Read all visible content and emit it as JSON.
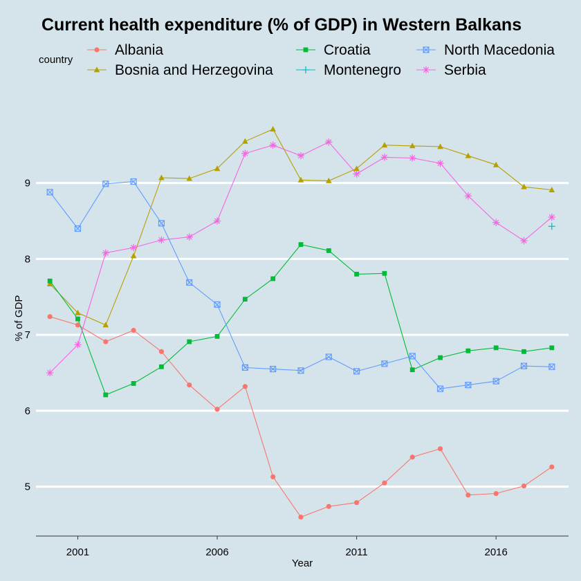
{
  "chart_data": {
    "type": "line",
    "title": "Current health expenditure (% of GDP) in Western Balkans",
    "xlabel": "Year",
    "ylabel": "% of GDP",
    "legend_title": "country",
    "legend_position": "top",
    "grid": "horizontal major lines",
    "xlim": [
      1999.5,
      2018.6
    ],
    "ylim": [
      4.35,
      10.3
    ],
    "x_ticks": [
      2001,
      2006,
      2011,
      2016
    ],
    "y_ticks": [
      5,
      6,
      7,
      8,
      9
    ],
    "x": [
      2000,
      2001,
      2002,
      2003,
      2004,
      2005,
      2006,
      2007,
      2008,
      2009,
      2010,
      2011,
      2012,
      2013,
      2014,
      2015,
      2016,
      2017,
      2018
    ],
    "series": [
      {
        "name": "Albania",
        "color": "#f8766d",
        "marker": "circle",
        "values": [
          7.24,
          7.13,
          6.91,
          7.06,
          6.78,
          6.34,
          6.02,
          6.32,
          5.13,
          4.6,
          4.74,
          4.79,
          5.05,
          5.39,
          5.5,
          4.89,
          4.91,
          5.01,
          5.26
        ]
      },
      {
        "name": "Bosnia and Herzegovina",
        "color": "#b79f00",
        "marker": "triangle",
        "values": [
          7.67,
          7.29,
          7.13,
          8.04,
          9.07,
          9.06,
          9.19,
          9.55,
          9.71,
          9.04,
          9.03,
          9.19,
          9.5,
          9.49,
          9.48,
          9.36,
          9.24,
          8.95,
          8.91
        ]
      },
      {
        "name": "Croatia",
        "color": "#00ba38",
        "marker": "square",
        "values": [
          7.71,
          7.21,
          6.21,
          6.36,
          6.58,
          6.91,
          6.98,
          7.47,
          7.74,
          8.19,
          8.11,
          7.8,
          7.81,
          6.54,
          6.7,
          6.79,
          6.83,
          6.78,
          6.83
        ]
      },
      {
        "name": "Montenegro",
        "color": "#00bfc4",
        "marker": "plus",
        "values": [
          null,
          null,
          null,
          null,
          null,
          null,
          null,
          null,
          null,
          null,
          null,
          null,
          null,
          null,
          null,
          null,
          null,
          null,
          8.43
        ]
      },
      {
        "name": "North Macedonia",
        "color": "#619cff",
        "marker": "square-cross",
        "values": [
          8.88,
          8.4,
          8.99,
          9.02,
          8.47,
          7.69,
          7.4,
          6.57,
          6.55,
          6.53,
          6.71,
          6.52,
          6.62,
          6.72,
          6.29,
          6.34,
          6.39,
          6.59,
          6.58
        ]
      },
      {
        "name": "Serbia",
        "color": "#f564e3",
        "marker": "asterisk",
        "values": [
          6.5,
          6.87,
          8.08,
          8.15,
          8.25,
          8.29,
          8.5,
          9.39,
          9.5,
          9.36,
          9.54,
          9.12,
          9.34,
          9.33,
          9.26,
          8.83,
          8.48,
          8.24,
          8.55
        ]
      }
    ]
  }
}
